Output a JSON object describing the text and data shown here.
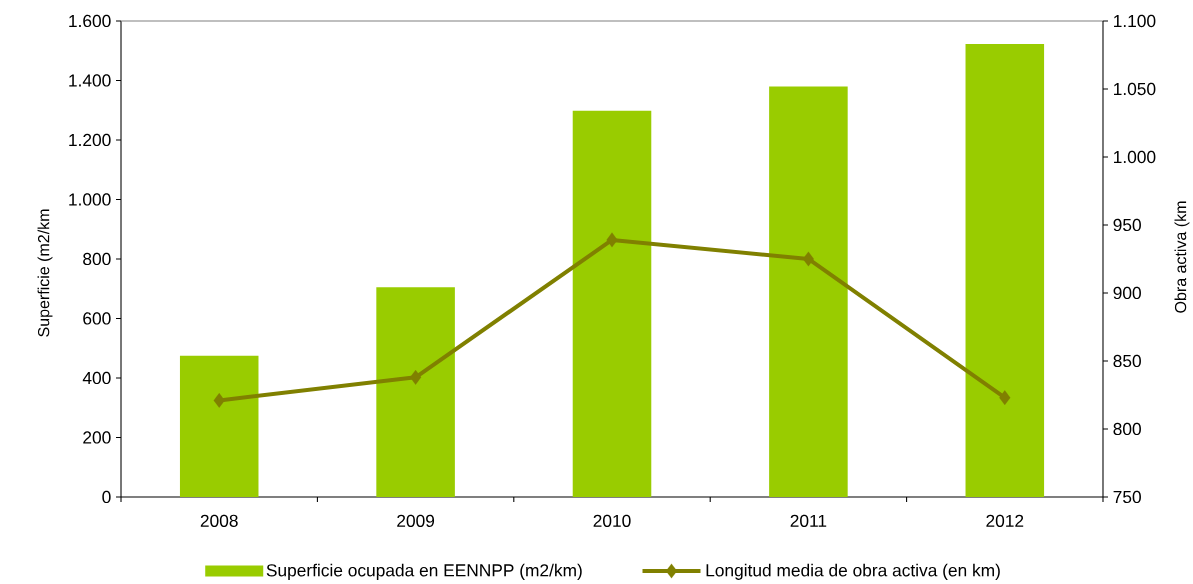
{
  "chart_data": {
    "type": "bar",
    "categories": [
      "2008",
      "2009",
      "2010",
      "2011",
      "2012"
    ],
    "ylabel": "Superficie (m2/km",
    "y2label": "Obra activa (km",
    "series": [
      {
        "name": "Superficie ocupada en EENNPP (m2/km)",
        "color": "#99cc00",
        "values": [
          475,
          705,
          1298,
          1380,
          1523
        ]
      },
      {
        "name": "Longitud media de obra activa (en km)",
        "type": "line",
        "axis": "y2",
        "color": "#808000",
        "marker": "diamond",
        "line_style": "solid",
        "values": [
          821,
          838,
          939,
          925,
          823
        ]
      }
    ],
    "ylim": [
      0,
      1600
    ],
    "yticks": [
      0,
      200,
      400,
      600,
      800,
      {
        "value": 1000,
        "label": "1.000"
      },
      {
        "value": 1200,
        "label": "1.200"
      },
      {
        "value": 1400,
        "label": "1.400"
      },
      {
        "value": 1600,
        "label": "1.600"
      }
    ],
    "y2lim": [
      750,
      1100
    ],
    "y2ticks": [
      750,
      800,
      850,
      900,
      950,
      {
        "value": 1000,
        "label": "1.000"
      },
      {
        "value": 1050,
        "label": "1.050"
      },
      {
        "value": 1100,
        "label": "1.100"
      }
    ],
    "legend": "bottom",
    "grid": false
  }
}
